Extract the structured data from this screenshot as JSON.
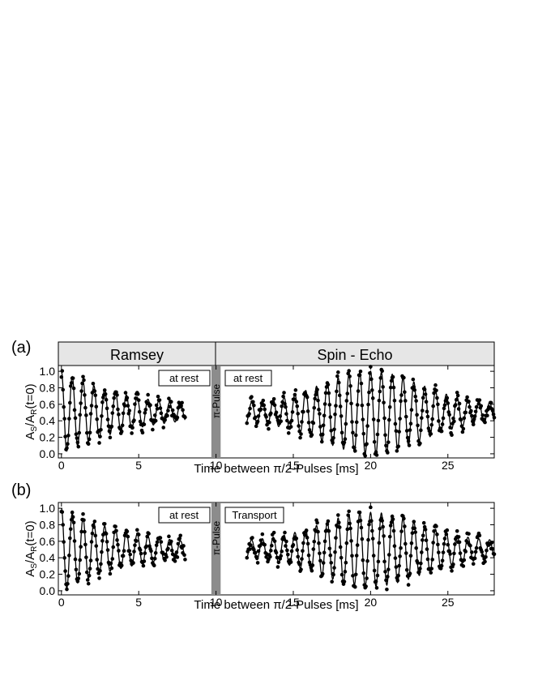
{
  "chart_data": [
    {
      "type": "scatter",
      "panel_label": "(a)",
      "header": [
        "Ramsey",
        "Spin - Echo"
      ],
      "boxes": [
        "at rest",
        "at rest"
      ],
      "pulse_label": "π-Pulse",
      "ylabel": "A_S/A_R(t=0)",
      "xlabel": "Time between π/2-Pulses [ms]",
      "xlim": [
        -0.2,
        28
      ],
      "ylim": [
        -0.05,
        1.07
      ],
      "xticks": [
        0,
        5,
        10,
        15,
        20,
        25
      ],
      "yticks": [
        0.0,
        0.2,
        0.4,
        0.6,
        0.8,
        1.0
      ],
      "pulse_band": [
        9.7,
        10.3
      ],
      "series": [
        {
          "segment": "ramsey",
          "x_range": [
            0,
            8
          ],
          "period_ms": 0.7,
          "baseline": 0.5,
          "amplitude_start": 0.5,
          "amplitude_end": 0.1,
          "points_per_ms": 20
        },
        {
          "segment": "spin-echo",
          "x_range": [
            12,
            28
          ],
          "period_ms": 0.7,
          "baseline": 0.5,
          "amplitude_at_echo": 0.5,
          "amplitude_far": 0.1,
          "echo_center_ms": 20,
          "points_per_ms": 20
        }
      ]
    },
    {
      "type": "scatter",
      "panel_label": "(b)",
      "boxes": [
        "at rest",
        "Transport"
      ],
      "pulse_label": "π-Pulse",
      "ylabel": "A_S/A_R(t=0)",
      "xlabel": "Time between π/2-Pulses [ms]",
      "xlim": [
        -0.2,
        28
      ],
      "ylim": [
        -0.05,
        1.07
      ],
      "xticks": [
        0,
        5,
        10,
        15,
        20,
        25
      ],
      "yticks": [
        0.0,
        0.2,
        0.4,
        0.6,
        0.8,
        1.0
      ],
      "pulse_band": [
        9.7,
        10.3
      ],
      "series": [
        {
          "segment": "ramsey",
          "x_range": [
            0,
            8
          ],
          "period_ms": 0.7,
          "baseline": 0.5,
          "amplitude_start": 0.5,
          "amplitude_end": 0.1,
          "points_per_ms": 20
        },
        {
          "segment": "spin-echo",
          "x_range": [
            12,
            28
          ],
          "period_ms": 0.7,
          "baseline": 0.5,
          "amplitude_at_echo": 0.45,
          "amplitude_far": 0.1,
          "echo_center_ms": 20,
          "points_per_ms": 20
        }
      ]
    }
  ]
}
